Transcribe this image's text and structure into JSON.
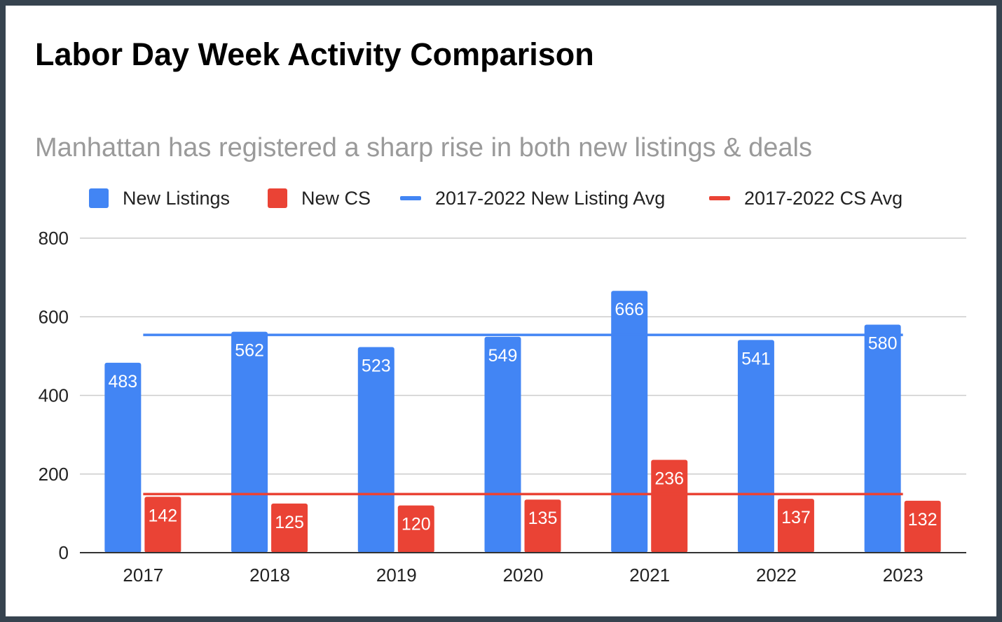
{
  "title": "Labor Day Week Activity Comparison",
  "subtitle": "Manhattan has registered a sharp rise in both new listings & deals",
  "legend": [
    {
      "label": "New Listings",
      "type": "box",
      "color": "#4285f4"
    },
    {
      "label": "New CS",
      "type": "box",
      "color": "#ea4335"
    },
    {
      "label": "2017-2022 New Listing Avg",
      "type": "line",
      "color": "#4285f4"
    },
    {
      "label": "2017-2022 CS Avg",
      "type": "line",
      "color": "#ea4335"
    }
  ],
  "chart_data": {
    "type": "bar",
    "title": "Labor Day Week Activity Comparison",
    "subtitle": "Manhattan has registered a sharp rise in both new listings & deals",
    "categories": [
      "2017",
      "2018",
      "2019",
      "2020",
      "2021",
      "2022",
      "2023"
    ],
    "series": [
      {
        "name": "New Listings",
        "type": "bar",
        "color": "#4285f4",
        "values": [
          483,
          562,
          523,
          549,
          666,
          541,
          580
        ]
      },
      {
        "name": "New CS",
        "type": "bar",
        "color": "#ea4335",
        "values": [
          142,
          125,
          120,
          135,
          236,
          137,
          132
        ]
      },
      {
        "name": "2017-2022 New Listing Avg",
        "type": "line",
        "color": "#4285f4",
        "value": 554
      },
      {
        "name": "2017-2022 CS Avg",
        "type": "line",
        "color": "#ea4335",
        "value": 149
      }
    ],
    "yticks": [
      0,
      200,
      400,
      600,
      800
    ],
    "ylim": [
      0,
      800
    ],
    "xlabel": "",
    "ylabel": "",
    "grid": true,
    "legend_position": "top"
  }
}
